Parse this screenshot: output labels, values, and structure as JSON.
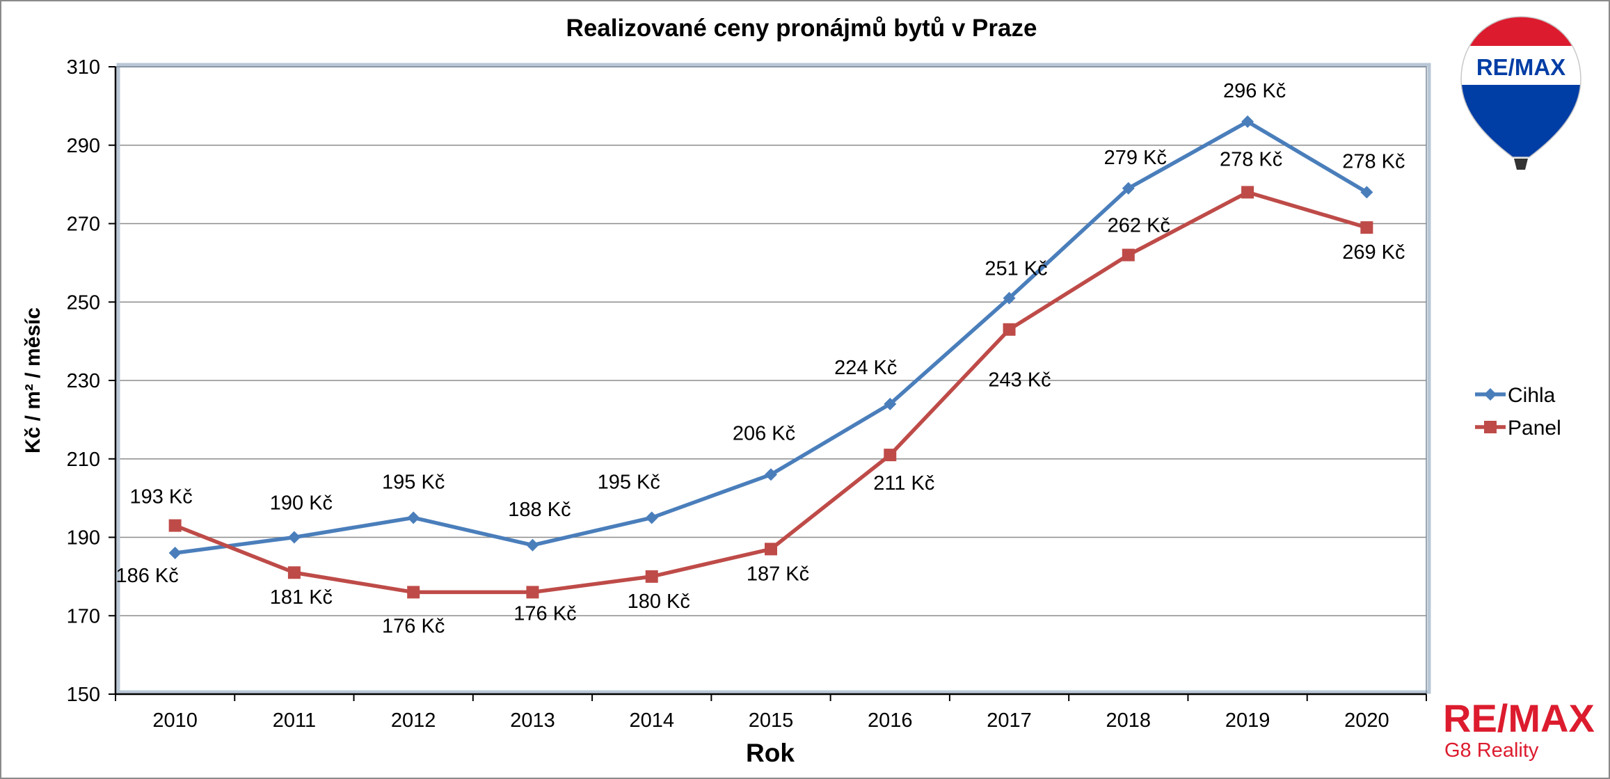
{
  "chart_data": {
    "type": "line",
    "title": "Realizované ceny pronájmů bytů v Praze",
    "xlabel": "Rok",
    "ylabel": "Kč / m² / měsíc",
    "categories": [
      "2010",
      "2011",
      "2012",
      "2013",
      "2014",
      "2015",
      "2016",
      "2017",
      "2018",
      "2019",
      "2020"
    ],
    "ylim": [
      150,
      310
    ],
    "yticks": [
      150,
      170,
      190,
      210,
      230,
      250,
      270,
      290,
      310
    ],
    "grid": true,
    "legend_position": "right",
    "series": [
      {
        "name": "Cihla",
        "color": "#4a7ebb",
        "marker": "diamond",
        "values": [
          186,
          190,
          195,
          188,
          195,
          206,
          224,
          251,
          279,
          296,
          278
        ],
        "labels": [
          "186 Kč",
          "190 Kč",
          "195 Kč",
          "188 Kč",
          "195 Kč",
          "206 Kč",
          "224 Kč",
          "251 Kč",
          "279 Kč",
          "296 Kč",
          "278 Kč"
        ]
      },
      {
        "name": "Panel",
        "color": "#be4b48",
        "marker": "square",
        "values": [
          193,
          181,
          176,
          176,
          180,
          187,
          211,
          243,
          262,
          278,
          269
        ],
        "labels": [
          "193 Kč",
          "181 Kč",
          "176 Kč",
          "176 Kč",
          "180 Kč",
          "187 Kč",
          "211 Kč",
          "243 Kč",
          "262 Kč",
          "278 Kč",
          "269 Kč"
        ]
      }
    ]
  },
  "branding": {
    "logo_text": "RE/MAX",
    "subtitle": "G8 Reality",
    "balloon_text": "RE/MAX",
    "brand_red": "#dc1c2e",
    "brand_blue": "#003da5"
  }
}
